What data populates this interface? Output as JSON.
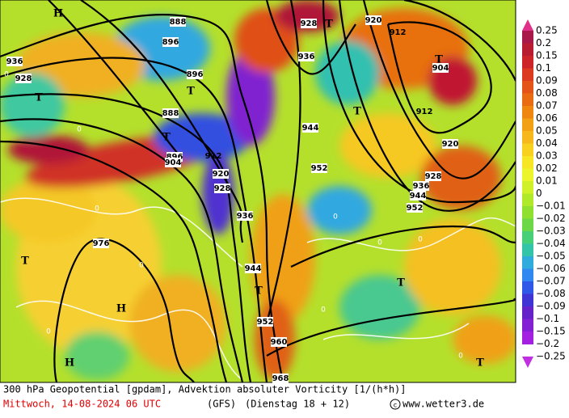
{
  "colorbar": {
    "labels": [
      "0.25",
      "0.2",
      "0.15",
      "0.1",
      "0.09",
      "0.08",
      "0.07",
      "0.06",
      "0.05",
      "0.04",
      "0.03",
      "0.02",
      "0.01",
      "0",
      "−0.01",
      "−0.02",
      "−0.03",
      "−0.04",
      "−0.05",
      "−0.06",
      "−0.07",
      "−0.08",
      "−0.09",
      "−0.1",
      "−0.15",
      "−0.2",
      "−0.25"
    ],
    "colors": [
      "#e0308a",
      "#a81848",
      "#b81c30",
      "#cc2428",
      "#dc3a20",
      "#e45418",
      "#ea6c12",
      "#ee8610",
      "#f2a014",
      "#f6b81c",
      "#f8d020",
      "#f6e624",
      "#ecf42a",
      "#d0f02a",
      "#b0e82a",
      "#90e030",
      "#6cd848",
      "#48d078",
      "#34c4a8",
      "#30acdc",
      "#3088f0",
      "#3058e8",
      "#4034d4",
      "#6422c8",
      "#8420d4",
      "#a420e0",
      "#c030e0"
    ]
  },
  "map": {
    "labels": [
      "888",
      "896",
      "896",
      "888",
      "896",
      "904",
      "912",
      "920",
      "928",
      "936",
      "944",
      "952",
      "960",
      "968",
      "976",
      "936",
      "928",
      "928",
      "936",
      "944",
      "952",
      "920",
      "912",
      "904",
      "912",
      "920",
      "928",
      "936",
      "944",
      "952"
    ],
    "markers": [
      "T",
      "T",
      "T",
      "T",
      "T",
      "T",
      "T",
      "T",
      "T",
      "T",
      "H",
      "H",
      "H"
    ],
    "zeros": [
      "0",
      "0",
      "0",
      "0",
      "0",
      "0",
      "0",
      "0",
      "0",
      "0"
    ]
  },
  "footer": {
    "title": "300 hPa Geopotential [gpdam], Advektion absoluter Vorticity [1/(h*h)]",
    "date": "Mittwoch, 14-08-2024  06 UTC",
    "model": "(GFS)",
    "run": "(Dienstag 18 + 12)",
    "site": "www.wetter3.de"
  }
}
